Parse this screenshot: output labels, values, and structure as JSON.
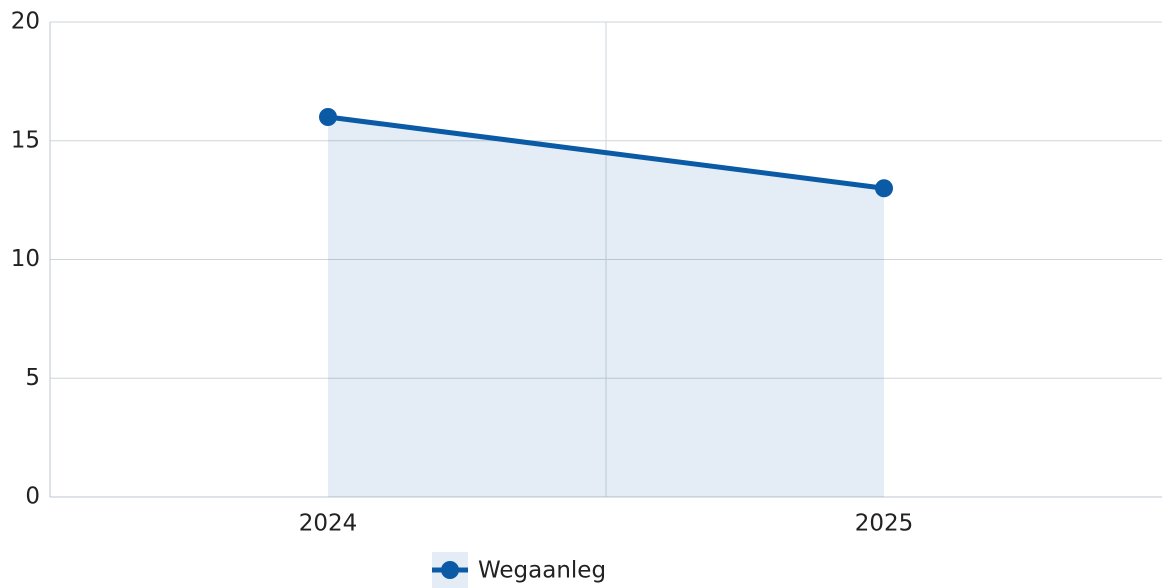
{
  "chart_data": {
    "type": "line",
    "categories": [
      "2024",
      "2025"
    ],
    "series": [
      {
        "name": "Wegaanleg",
        "color": "#0b5aa6",
        "values": [
          16,
          13
        ]
      }
    ],
    "area": true,
    "ylim": [
      0,
      20
    ],
    "yticks": [
      0,
      5,
      10,
      15,
      20
    ],
    "grid": true,
    "legend": "bottom"
  }
}
